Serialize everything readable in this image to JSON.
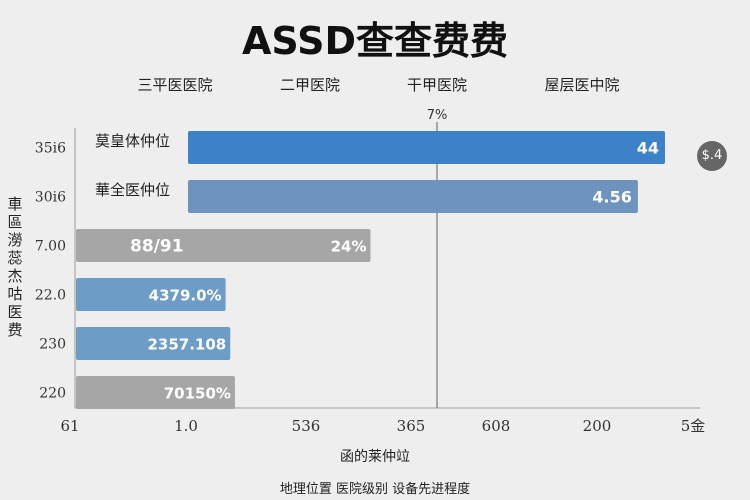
{
  "chart_data": {
    "type": "bar",
    "orientation": "horizontal",
    "title": "ASSD查查费费",
    "column_headers": [
      "三平医医院",
      "二甲医院",
      "干甲医院",
      "屋层医中院"
    ],
    "reference_line_label": "7%",
    "ylabel": "車區澇蕊杰咕医费",
    "xlabel": "函的莱仲竝",
    "legend_text": "地理位置   医院级别   设备先进程度",
    "x_ticks": [
      "61",
      "1.0",
      "536",
      "365",
      "608",
      "200",
      "5金"
    ],
    "reference_x": 365,
    "side_badge": "$.4",
    "bars": [
      {
        "tick": "35i6",
        "value": 630,
        "inner_label": "莫皇体仲位",
        "end_label": "44",
        "color": "#3b82c8"
      },
      {
        "tick": "30i6",
        "value": 601,
        "inner_label": "華全医仲位",
        "end_label": "4.56",
        "color": "#6d93be"
      },
      {
        "tick": "7.00",
        "value": 315,
        "inner_label": "88/91",
        "end_label": "24%",
        "color": "#a6a6a6"
      },
      {
        "tick": "22.0",
        "value": 160,
        "inner_label": "",
        "end_label": "4379.0%",
        "color": "#6d9cc7"
      },
      {
        "tick": "230",
        "value": 165,
        "inner_label": "",
        "end_label": "2357.108",
        "color": "#6d9cc7"
      },
      {
        "tick": "220",
        "value": 170,
        "inner_label": "",
        "end_label": "70150%",
        "color": "#a6a6a6"
      }
    ]
  }
}
